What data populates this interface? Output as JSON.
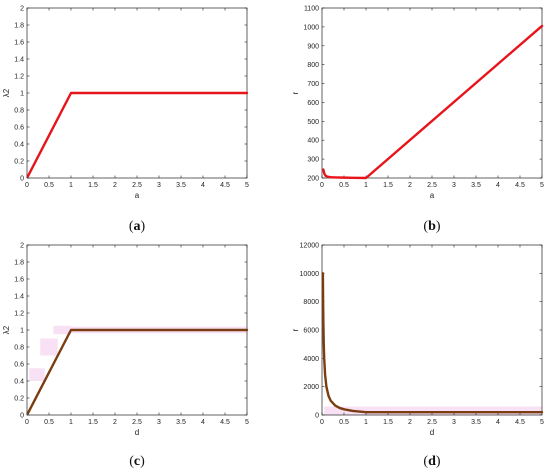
{
  "colors": {
    "red_line": "#e8141b",
    "brown_line": "#7a3d12",
    "shade": "#f7d9f3",
    "axis": "#222222"
  },
  "chart_data": [
    {
      "id": "a",
      "type": "line",
      "caption_letter": "a",
      "xlabel": "a",
      "ylabel": "λ2",
      "xlim": [
        0,
        5
      ],
      "ylim": [
        0,
        2
      ],
      "xticks": [
        "0",
        "0.5",
        "1",
        "1.5",
        "2",
        "2.5",
        "3",
        "3.5",
        "4",
        "4.5",
        "5"
      ],
      "yticks": [
        "0",
        "0.2",
        "0.4",
        "0.6",
        "0.8",
        "1",
        "1.2",
        "1.4",
        "1.6",
        "1.8",
        "2"
      ],
      "grid": false,
      "series": [
        {
          "color": "#e8141b",
          "x": [
            0.02,
            1,
            5
          ],
          "y": [
            0.02,
            1,
            1
          ]
        }
      ]
    },
    {
      "id": "b",
      "type": "line",
      "caption_letter": "b",
      "xlabel": "a",
      "ylabel": "r",
      "xlim": [
        0,
        5
      ],
      "ylim": [
        200,
        1100
      ],
      "xticks": [
        "0",
        "0.5",
        "1",
        "1.5",
        "2",
        "2.5",
        "3",
        "3.5",
        "4",
        "4.5",
        "5"
      ],
      "yticks": [
        "200",
        "300",
        "400",
        "500",
        "600",
        "700",
        "800",
        "900",
        "1000",
        "1100"
      ],
      "grid": false,
      "series": [
        {
          "color": "#e8141b",
          "x": [
            0.03,
            0.05,
            0.08,
            0.12,
            0.2,
            0.3,
            0.5,
            0.7,
            1,
            5
          ],
          "y": [
            245,
            225,
            212,
            207,
            204,
            203,
            202,
            201,
            200,
            1005
          ]
        }
      ]
    },
    {
      "id": "c",
      "type": "line",
      "caption_letter": "c",
      "xlabel": "d",
      "ylabel": "λ2",
      "xlim": [
        0,
        5
      ],
      "ylim": [
        0,
        2
      ],
      "xticks": [
        "0",
        "0.5",
        "1",
        "1.5",
        "2",
        "2.5",
        "3",
        "3.5",
        "4",
        "4.5",
        "5"
      ],
      "yticks": [
        "0",
        "0.2",
        "0.4",
        "0.6",
        "0.8",
        "1",
        "1.2",
        "1.4",
        "1.6",
        "1.8",
        "2"
      ],
      "grid": false,
      "series": [
        {
          "color": "#7a3d12",
          "x": [
            0.02,
            1,
            5
          ],
          "y": [
            0.02,
            1,
            1
          ]
        }
      ]
    },
    {
      "id": "d",
      "type": "line",
      "caption_letter": "d",
      "xlabel": "d",
      "ylabel": "r",
      "xlim": [
        0,
        5
      ],
      "ylim": [
        0,
        12000
      ],
      "xticks": [
        "0",
        "0.5",
        "1",
        "1.5",
        "2",
        "2.5",
        "3",
        "3.5",
        "4",
        "4.5",
        "5"
      ],
      "yticks": [
        "0",
        "2000",
        "4000",
        "6000",
        "8000",
        "10000",
        "12000"
      ],
      "grid": false,
      "series": [
        {
          "color": "#7a3d12",
          "x": [
            0.02,
            0.025,
            0.03,
            0.04,
            0.05,
            0.07,
            0.1,
            0.15,
            0.2,
            0.3,
            0.4,
            0.5,
            0.7,
            1,
            1.5,
            2,
            3,
            4,
            5
          ],
          "y": [
            10000,
            8000,
            6700,
            5000,
            4000,
            2860,
            2000,
            1330,
            1000,
            667,
            500,
            400,
            286,
            200,
            200,
            200,
            200,
            200,
            200
          ]
        }
      ]
    }
  ]
}
